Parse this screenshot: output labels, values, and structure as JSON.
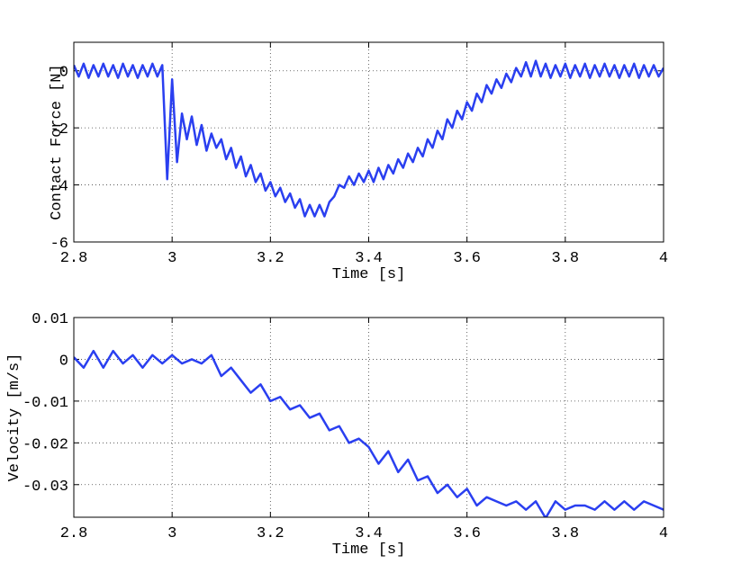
{
  "chart_data": [
    {
      "type": "line",
      "ylabel": "Contact Force [N]",
      "xlabel": "Time [s]",
      "xlim": [
        2.8,
        4
      ],
      "xticks": [
        2.8,
        3,
        3.2,
        3.4,
        3.6,
        3.8,
        4
      ],
      "ylim": [
        -6,
        1
      ],
      "yticks": [
        -6,
        -4,
        -2,
        0
      ],
      "grid": true,
      "series": [
        {
          "color": "#2a3ff0",
          "x": [
            2.8,
            2.81,
            2.82,
            2.83,
            2.84,
            2.85,
            2.86,
            2.87,
            2.88,
            2.89,
            2.9,
            2.91,
            2.92,
            2.93,
            2.94,
            2.95,
            2.96,
            2.97,
            2.98,
            2.99,
            3,
            3.01,
            3.02,
            3.03,
            3.04,
            3.05,
            3.06,
            3.07,
            3.08,
            3.09,
            3.1,
            3.11,
            3.12,
            3.13,
            3.14,
            3.15,
            3.16,
            3.17,
            3.18,
            3.19,
            3.2,
            3.21,
            3.22,
            3.23,
            3.24,
            3.25,
            3.26,
            3.27,
            3.28,
            3.29,
            3.3,
            3.31,
            3.32,
            3.33,
            3.34,
            3.35,
            3.36,
            3.37,
            3.38,
            3.39,
            3.4,
            3.41,
            3.42,
            3.43,
            3.44,
            3.45,
            3.46,
            3.47,
            3.48,
            3.49,
            3.5,
            3.51,
            3.52,
            3.53,
            3.54,
            3.55,
            3.56,
            3.57,
            3.58,
            3.59,
            3.6,
            3.61,
            3.62,
            3.63,
            3.64,
            3.65,
            3.66,
            3.67,
            3.68,
            3.69,
            3.7,
            3.71,
            3.72,
            3.73,
            3.74,
            3.75,
            3.76,
            3.77,
            3.78,
            3.79,
            3.8,
            3.81,
            3.82,
            3.83,
            3.84,
            3.85,
            3.86,
            3.87,
            3.88,
            3.89,
            3.9,
            3.91,
            3.92,
            3.93,
            3.94,
            3.95,
            3.96,
            3.97,
            3.98,
            3.99,
            4
          ],
          "values": [
            0.2,
            -0.2,
            0.25,
            -0.25,
            0.2,
            -0.2,
            0.25,
            -0.2,
            0.2,
            -0.25,
            0.25,
            -0.2,
            0.2,
            -0.25,
            0.2,
            -0.2,
            0.25,
            -0.2,
            0.2,
            -3.8,
            -0.3,
            -3.2,
            -1.5,
            -2.4,
            -1.6,
            -2.6,
            -1.9,
            -2.8,
            -2.2,
            -2.7,
            -2.4,
            -3.1,
            -2.7,
            -3.4,
            -3.0,
            -3.7,
            -3.3,
            -3.9,
            -3.6,
            -4.2,
            -3.9,
            -4.4,
            -4.1,
            -4.6,
            -4.3,
            -4.8,
            -4.5,
            -5.1,
            -4.7,
            -5.1,
            -4.7,
            -5.1,
            -4.6,
            -4.4,
            -4.0,
            -4.1,
            -3.7,
            -4.0,
            -3.6,
            -3.9,
            -3.5,
            -3.9,
            -3.4,
            -3.8,
            -3.3,
            -3.6,
            -3.1,
            -3.4,
            -2.9,
            -3.2,
            -2.7,
            -3.0,
            -2.4,
            -2.7,
            -2.1,
            -2.4,
            -1.7,
            -2.0,
            -1.4,
            -1.7,
            -1.1,
            -1.4,
            -0.8,
            -1.1,
            -0.5,
            -0.8,
            -0.3,
            -0.6,
            -0.1,
            -0.4,
            0.1,
            -0.2,
            0.3,
            -0.2,
            0.35,
            -0.2,
            0.25,
            -0.25,
            0.2,
            -0.2,
            0.25,
            -0.25,
            0.2,
            -0.2,
            0.25,
            -0.25,
            0.2,
            -0.2,
            0.25,
            -0.2,
            0.2,
            -0.25,
            0.2,
            -0.2,
            0.25,
            -0.25,
            0.2,
            -0.2,
            0.2,
            -0.2,
            0.1
          ]
        }
      ]
    },
    {
      "type": "line",
      "ylabel": "Velocity [m/s]",
      "xlabel": "Time [s]",
      "xlim": [
        2.8,
        4
      ],
      "xticks": [
        2.8,
        3,
        3.2,
        3.4,
        3.6,
        3.8,
        4
      ],
      "ylim": [
        -0.0378,
        0.01
      ],
      "yticks": [
        -0.03,
        -0.02,
        -0.01,
        0,
        0.01
      ],
      "grid": true,
      "series": [
        {
          "color": "#2a3ff0",
          "x": [
            2.8,
            2.82,
            2.84,
            2.86,
            2.88,
            2.9,
            2.92,
            2.94,
            2.96,
            2.98,
            3,
            3.02,
            3.04,
            3.06,
            3.08,
            3.1,
            3.12,
            3.14,
            3.16,
            3.18,
            3.2,
            3.22,
            3.24,
            3.26,
            3.28,
            3.3,
            3.32,
            3.34,
            3.36,
            3.38,
            3.4,
            3.42,
            3.44,
            3.46,
            3.48,
            3.5,
            3.52,
            3.54,
            3.56,
            3.58,
            3.6,
            3.62,
            3.64,
            3.66,
            3.68,
            3.7,
            3.72,
            3.74,
            3.76,
            3.78,
            3.8,
            3.82,
            3.84,
            3.86,
            3.88,
            3.9,
            3.92,
            3.94,
            3.96,
            3.98,
            4
          ],
          "values": [
            0.0005,
            -0.002,
            0.002,
            -0.002,
            0.002,
            -0.001,
            0.001,
            -0.002,
            0.001,
            -0.001,
            0.001,
            -0.001,
            0,
            -0.001,
            0.001,
            -0.004,
            -0.002,
            -0.005,
            -0.008,
            -0.006,
            -0.01,
            -0.009,
            -0.012,
            -0.011,
            -0.014,
            -0.013,
            -0.017,
            -0.016,
            -0.02,
            -0.019,
            -0.021,
            -0.025,
            -0.022,
            -0.027,
            -0.024,
            -0.029,
            -0.028,
            -0.032,
            -0.03,
            -0.033,
            -0.031,
            -0.035,
            -0.033,
            -0.034,
            -0.035,
            -0.034,
            -0.036,
            -0.034,
            -0.038,
            -0.034,
            -0.036,
            -0.035,
            -0.035,
            -0.036,
            -0.034,
            -0.036,
            -0.034,
            -0.036,
            -0.034,
            -0.035,
            -0.036
          ]
        }
      ]
    }
  ]
}
